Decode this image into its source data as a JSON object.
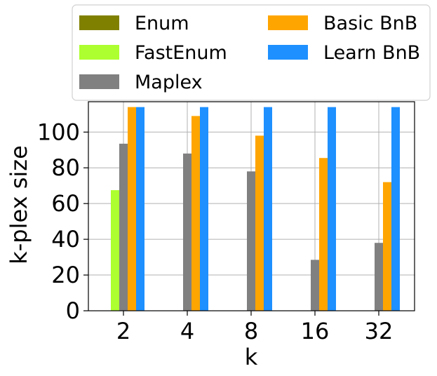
{
  "chart_data": {
    "type": "bar",
    "title": "",
    "xlabel": "k",
    "ylabel": "k-plex size",
    "categories": [
      "2",
      "4",
      "8",
      "16",
      "32"
    ],
    "ylim": [
      0,
      117
    ],
    "yticks": [
      0,
      20,
      40,
      60,
      80,
      100
    ],
    "grid": true,
    "legend_position": "top",
    "series": [
      {
        "name": "Enum",
        "color": "#808000",
        "values": [
          null,
          null,
          null,
          null,
          null
        ]
      },
      {
        "name": "FastEnum",
        "color": "#adff2f",
        "values": [
          67.5,
          null,
          null,
          null,
          null
        ]
      },
      {
        "name": "Maplex",
        "color": "#808080",
        "values": [
          93.5,
          88,
          78,
          28.5,
          38
        ]
      },
      {
        "name": "Basic BnB",
        "color": "#ffa500",
        "values": [
          114,
          109,
          98,
          85.5,
          72
        ]
      },
      {
        "name": "Learn BnB",
        "color": "#1e90ff",
        "values": [
          114,
          114,
          114,
          114,
          114
        ]
      }
    ]
  }
}
